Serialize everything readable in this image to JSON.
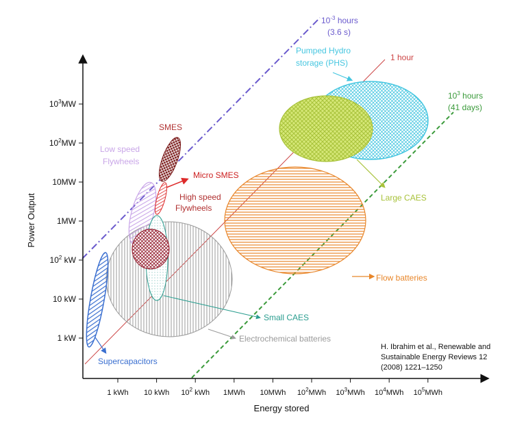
{
  "chart_data": {
    "type": "scatter",
    "title": "",
    "xlabel": "Energy stored",
    "ylabel": "Power Output",
    "x_scale": "log",
    "y_scale": "log",
    "xticks": [
      {
        "value": "1 kWh",
        "base": "1 kWh"
      },
      {
        "value": "10 kWh",
        "base": "10 kWh"
      },
      {
        "value": "10^2 kWh",
        "base": "10",
        "sup": "2",
        "rest": " kWh"
      },
      {
        "value": "1 MWh",
        "base": "1MWh"
      },
      {
        "value": "10 MWh",
        "base": "10MWh"
      },
      {
        "value": "10^2 MWh",
        "base": "10",
        "sup": "2",
        "rest": "MWh"
      },
      {
        "value": "10^3 MWh",
        "base": "10",
        "sup": "3",
        "rest": "MWh"
      },
      {
        "value": "10^4 MWh",
        "base": "10",
        "sup": "4",
        "rest": "MWh"
      },
      {
        "value": "10^5 MWh",
        "base": "10",
        "sup": "5",
        "rest": "MWh"
      }
    ],
    "yticks": [
      {
        "value": "1 kW",
        "base": "1 kW"
      },
      {
        "value": "10 kW",
        "base": "10 kW"
      },
      {
        "value": "10^2 kW",
        "base": "10",
        "sup": "2",
        "rest": " kW"
      },
      {
        "value": "1 MW",
        "base": "1MW"
      },
      {
        "value": "10 MW",
        "base": "10MW"
      },
      {
        "value": "10^2 MW",
        "base": "10",
        "sup": "2",
        "rest": "MW"
      },
      {
        "value": "10^3 MW",
        "base": "10",
        "sup": "3",
        "rest": "MW"
      }
    ],
    "discharge_time_lines": [
      {
        "name": "10^-3 hours (3.6 s)",
        "line1_base": "10",
        "line1_sup": "-3",
        "line1_rest": " hours",
        "line2": "(3.6 s)",
        "color": "#6a5acd",
        "style": "dash-dot"
      },
      {
        "name": "1 hour",
        "line1_base": "1 hour",
        "line2": "",
        "color": "#cc4444",
        "style": "solid"
      },
      {
        "name": "10^3 hours (41 days)",
        "line1_base": "10",
        "line1_sup": "3",
        "line1_rest": " hours",
        "line2": "(41 days)",
        "color": "#3a9a3a",
        "style": "dashed"
      }
    ],
    "technologies": [
      {
        "label": "Supercapacitors",
        "color": "#3a6fd0"
      },
      {
        "label": "Electrochemical batteries",
        "color": "#9a9a9a"
      },
      {
        "label": "Small CAES",
        "color": "#2a9d8f"
      },
      {
        "label": "Flow batteries",
        "color": "#e8862a"
      },
      {
        "label": "Large CAES",
        "color": "#a8c23a"
      },
      {
        "label": "Pumped Hydro storage (PHS)",
        "line1": "Pumped Hydro",
        "line2": "storage (PHS)",
        "color": "#45c6e0"
      },
      {
        "label": "SMES",
        "color": "#b03030"
      },
      {
        "label": "Micro SMES",
        "color": "#cc2020"
      },
      {
        "label": "High speed Flywheels",
        "line1": "High speed",
        "line2": "Flywheels",
        "color": "#b03030"
      },
      {
        "label": "Low speed Flywheels",
        "line1": "Low speed",
        "line2": "Flywheels",
        "color": "#c9a6e8"
      }
    ],
    "grid": false,
    "legend": "none"
  },
  "citation": {
    "line1": "H. Ibrahim et al., Renewable and",
    "line2": "Sustainable Energy Reviews 12",
    "line3": "(2008) 1221–1250"
  }
}
